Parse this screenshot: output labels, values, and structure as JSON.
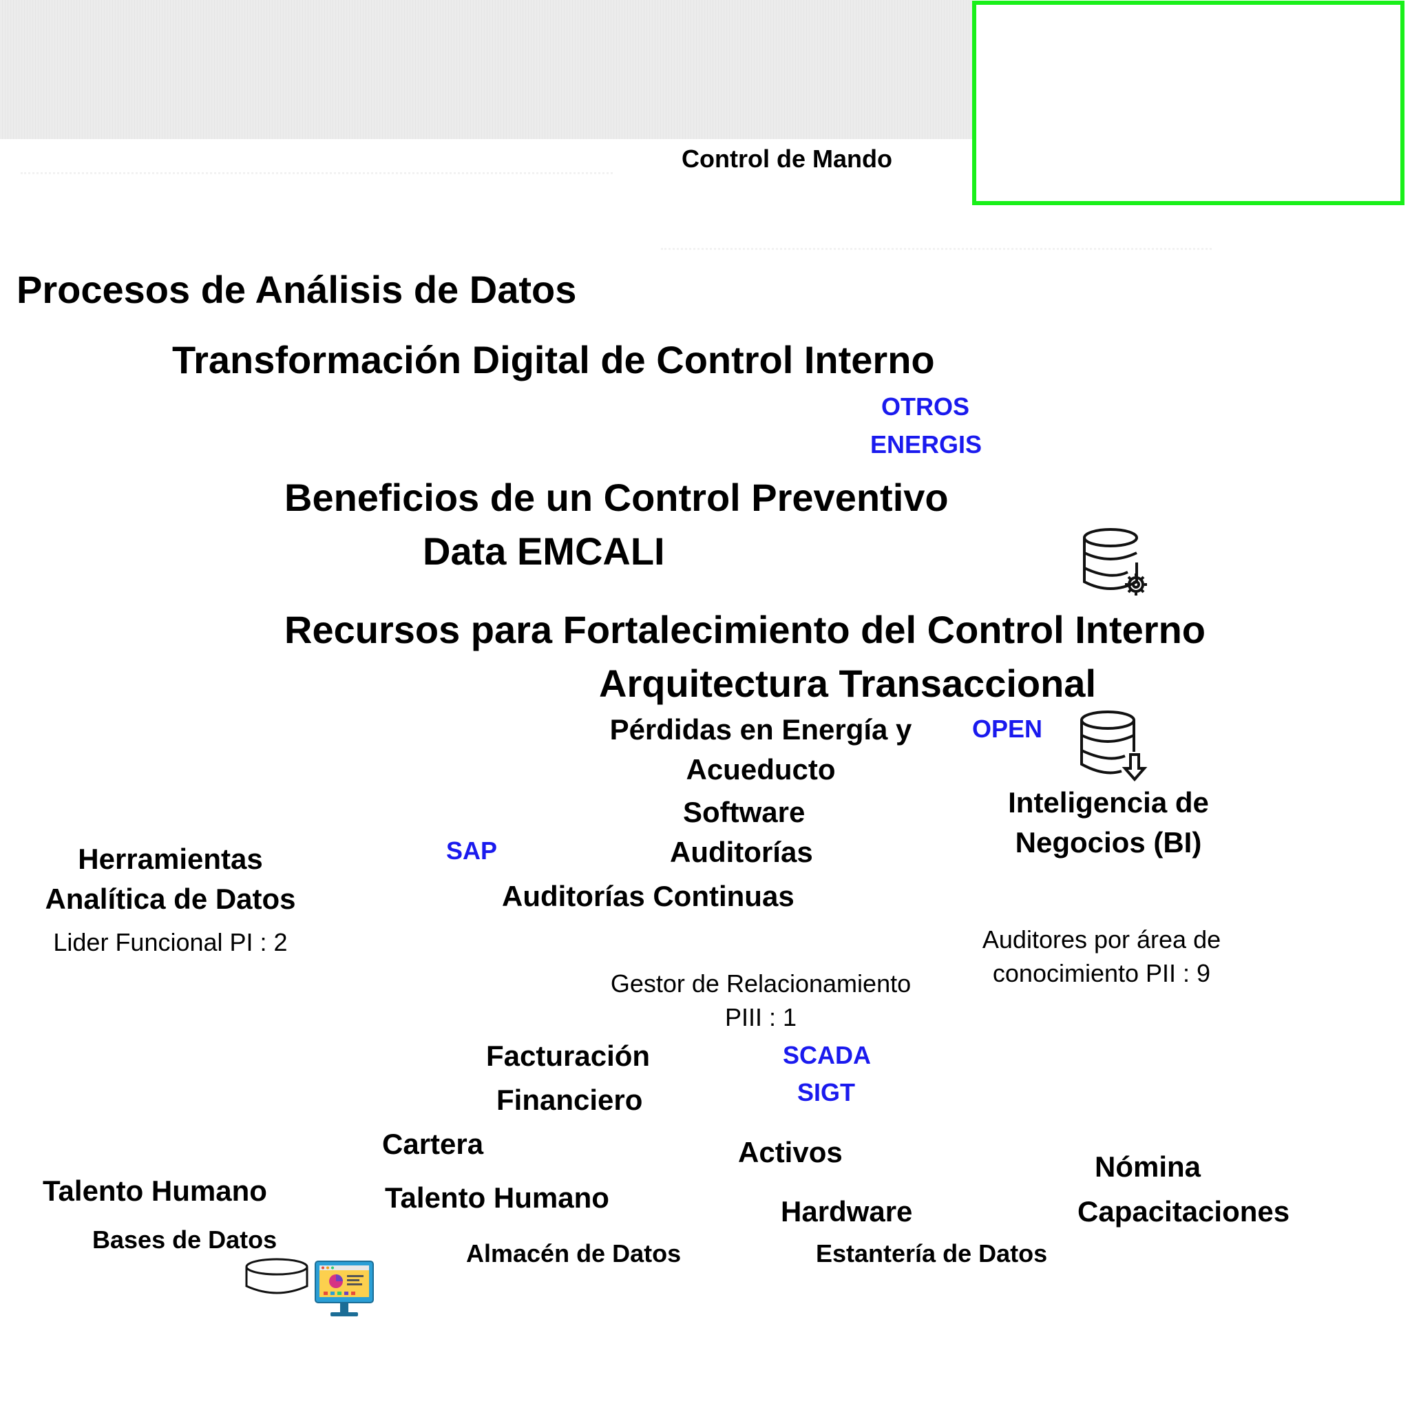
{
  "diagram": {
    "header": {
      "control_de_mando": "Control de Mando"
    },
    "titles": {
      "procesos": "Procesos de Análisis de Datos",
      "transformacion": "Transformación Digital de Control Interno",
      "beneficios": "Beneficios de un Control Preventivo",
      "data_emcali": "Data EMCALI",
      "recursos": "Recursos para Fortalecimiento del Control Interno",
      "arquitectura": "Arquitectura Transaccional"
    },
    "systems": {
      "otros": "OTROS",
      "energis": "ENERGIS",
      "open": "OPEN",
      "sap": "SAP",
      "scada": "SCADA",
      "sigt": "SIGT"
    },
    "labels": {
      "perdidas_1": "Pérdidas en Energía y",
      "perdidas_2": "Acueducto",
      "software": "Software",
      "auditorias": "Auditorías",
      "auditorias_continuas": "Auditorías Continuas",
      "bi_1": "Inteligencia de",
      "bi_2": "Negocios (BI)",
      "herramientas_1": "Herramientas",
      "herramientas_2": "Analítica de Datos",
      "facturacion": "Facturación",
      "financiero": "Financiero",
      "cartera": "Cartera",
      "activos": "Activos",
      "nomina": "Nómina",
      "capacitaciones": "Capacitaciones",
      "talento_humano_left": "Talento Humano",
      "talento_humano_mid": "Talento Humano",
      "hardware": "Hardware",
      "bases_de_datos": "Bases de Datos",
      "almacen_de_datos": "Almacén de Datos",
      "estanteria_de_datos": "Estantería de Datos"
    },
    "roles": {
      "lider_funcional": "Lider Funcional PI : 2",
      "gestor_1": "Gestor de Relacionamiento",
      "gestor_2": "PIII : 1",
      "auditores_1": "Auditores por área de",
      "auditores_2": "conocimiento PII : 9"
    },
    "icons": [
      "database-gear-icon",
      "database-download-icon",
      "database-icon",
      "dashboard-monitor-icon"
    ],
    "colors": {
      "system_blue": "#1a1aee",
      "frame_green": "#19f019"
    }
  }
}
